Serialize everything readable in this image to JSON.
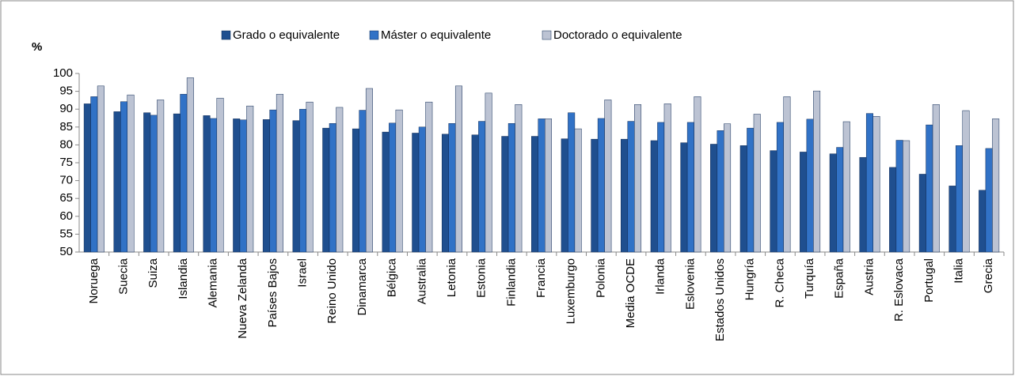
{
  "chart_data": {
    "type": "bar",
    "ylabel": "%",
    "categories": [
      "Noruega",
      "Suecia",
      "Suiza",
      "Islandia",
      "Alemania",
      "Nueva Zelanda",
      "Países Bajos",
      "Israel",
      "Reino Unido",
      "Dinamarca",
      "Bélgica",
      "Australia",
      "Letonia",
      "Estonia",
      "Finlandia",
      "Francia",
      "Luxemburgo",
      "Polonia",
      "Media OCDE",
      "Irlanda",
      "Eslovenia",
      "Estados Unidos",
      "Hungría",
      "R. Checa",
      "Turquía",
      "España",
      "Austria",
      "R. Eslovaca",
      "Portugal",
      "Italia",
      "Grecia"
    ],
    "series": [
      {
        "name": "Grado o equivalente",
        "color": "#1f4f8f",
        "values": [
          91.5,
          89.3,
          89,
          88.7,
          88.2,
          87.3,
          87.1,
          86.8,
          84.7,
          84.5,
          83.6,
          83.3,
          83,
          82.8,
          82.4,
          82.4,
          81.7,
          81.6,
          81.6,
          81.2,
          80.6,
          80.2,
          79.8,
          78.4,
          78,
          77.5,
          76.5,
          73.7,
          71.8,
          68.5,
          67.3
        ]
      },
      {
        "name": "Máster o equivalente",
        "color": "#3172c6",
        "values": [
          93.5,
          92.1,
          88.3,
          94.2,
          87.4,
          87,
          89.8,
          90,
          86,
          89.7,
          86.1,
          85,
          86,
          86.6,
          86,
          87.3,
          89,
          87.4,
          86.6,
          86.3,
          86.3,
          84,
          84.7,
          86.3,
          87.2,
          79.3,
          88.8,
          81.3,
          85.6,
          79.8,
          79
        ]
      },
      {
        "name": "Doctorado o equivalente",
        "color": "#bcc3d3",
        "values": [
          96.5,
          94,
          92.6,
          98.8,
          93.1,
          90.9,
          94.2,
          92,
          90.5,
          95.8,
          89.8,
          92,
          96.5,
          94.5,
          91.3,
          87.3,
          84.5,
          92.6,
          91.3,
          91.5,
          93.5,
          85.9,
          88.6,
          93.5,
          95.1,
          86.5,
          88,
          81.2,
          91.3,
          89.6,
          87.3
        ]
      }
    ],
    "ylim": [
      50,
      100
    ],
    "yticks": [
      50,
      55,
      60,
      65,
      70,
      75,
      80,
      85,
      90,
      95,
      100
    ],
    "legend": "top"
  }
}
